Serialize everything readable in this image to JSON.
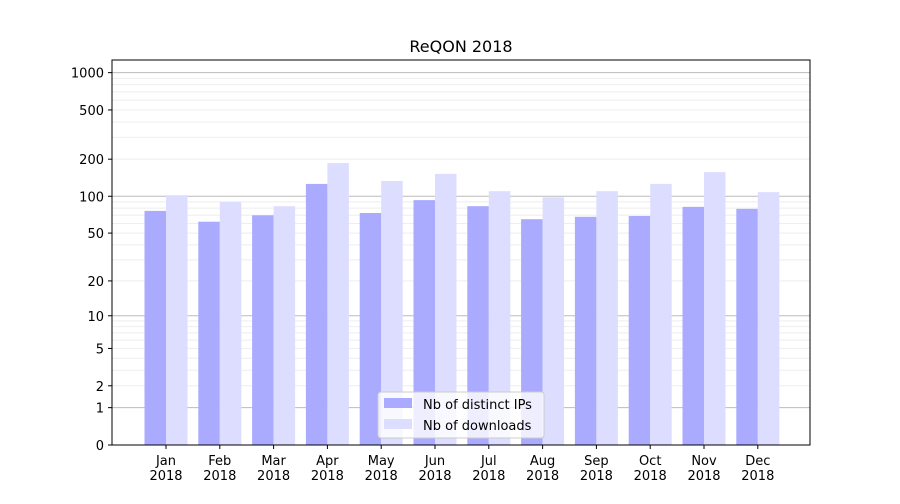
{
  "chart_data": {
    "type": "bar",
    "title": "ReQON 2018",
    "xlabel": "",
    "ylabel": "",
    "yscale": "log10(1+y)",
    "ylim": [
      0,
      1300
    ],
    "yticks": [
      0,
      1,
      2,
      5,
      10,
      20,
      50,
      100,
      200,
      500,
      1000
    ],
    "grid": true,
    "legend": "bottom-center",
    "categories": [
      "Jan\n2018",
      "Feb\n2018",
      "Mar\n2018",
      "Apr\n2018",
      "May\n2018",
      "Jun\n2018",
      "Jul\n2018",
      "Aug\n2018",
      "Sep\n2018",
      "Oct\n2018",
      "Nov\n2018",
      "Dec\n2018"
    ],
    "series": [
      {
        "name": "Nb of distinct IPs",
        "color": "#aaaaff",
        "values": [
          76,
          62,
          70,
          126,
          73,
          93,
          83,
          65,
          68,
          69,
          82,
          79
        ]
      },
      {
        "name": "Nb of downloads",
        "color": "#ddddff",
        "values": [
          102,
          90,
          83,
          186,
          133,
          152,
          110,
          98,
          110,
          126,
          157,
          108
        ]
      }
    ]
  }
}
